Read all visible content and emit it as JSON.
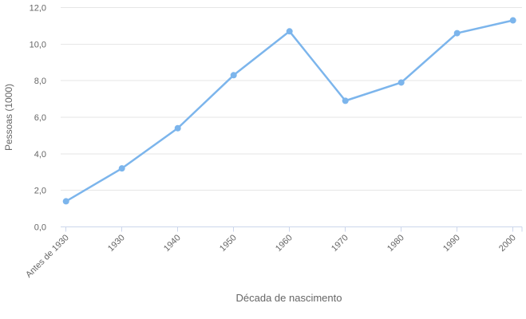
{
  "chart_data": {
    "type": "line",
    "title": "",
    "categories": [
      "Antes de 1930",
      "1930",
      "1940",
      "1950",
      "1960",
      "1970",
      "1980",
      "1990",
      "2000"
    ],
    "values": [
      1.4,
      3.2,
      5.4,
      8.3,
      10.7,
      6.9,
      7.9,
      10.6,
      11.3
    ],
    "xlabel": "Década de nascimento",
    "ylabel": "Pessoas (1000)",
    "ylim": [
      0,
      12
    ],
    "y_tick_values": [
      0,
      2,
      4,
      6,
      8,
      10,
      12
    ],
    "y_tick_labels": [
      "0,0",
      "2,0",
      "4,0",
      "6,0",
      "8,0",
      "10,0",
      "12,0"
    ],
    "x_label_rotation": -45,
    "grid": true,
    "legend": false,
    "colors": {
      "series": "#7cb5ec",
      "grid": "#e6e6e6",
      "axis_line": "#ccd6eb",
      "text": "#666666",
      "background": "#ffffff"
    }
  }
}
